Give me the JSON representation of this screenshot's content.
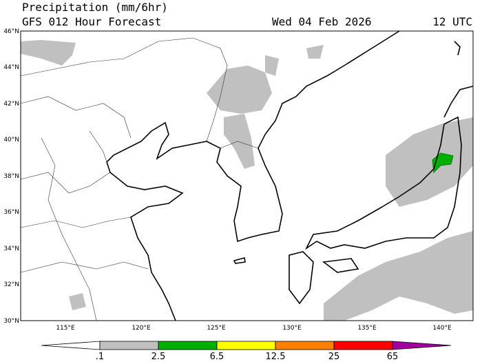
{
  "header": {
    "title": "Precipitation (mm/6hr)",
    "subtitle": "GFS 012 Hour Forecast",
    "date": "Wed 04 Feb 2026",
    "time": "12 UTC"
  },
  "map": {
    "lat_labels": [
      "46°N",
      "44°N",
      "42°N",
      "40°N",
      "38°N",
      "36°N",
      "34°N",
      "32°N",
      "30°N"
    ],
    "lon_labels": [
      "115°E",
      "120°E",
      "125°E",
      "130°E",
      "135°E",
      "140°E"
    ]
  },
  "colorbar": {
    "labels": [
      ".1",
      "2.5",
      "6.5",
      "12.5",
      "25",
      "65"
    ]
  }
}
